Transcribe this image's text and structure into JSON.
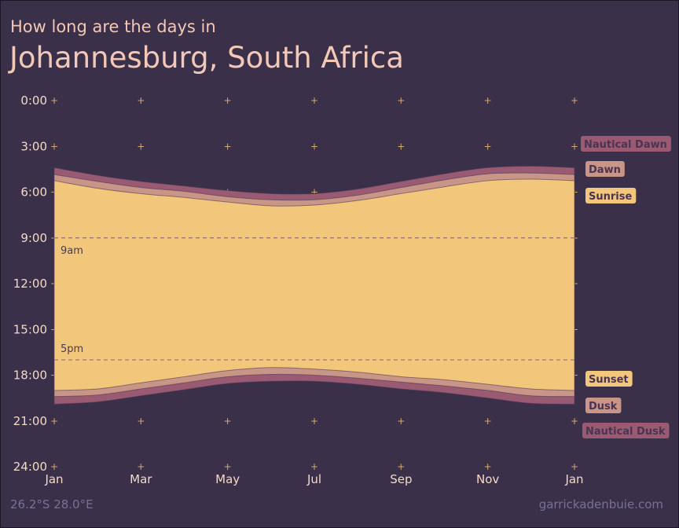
{
  "header": {
    "subtitle": "How long are the days in",
    "title": "Johannesburg, South Africa"
  },
  "footer": {
    "coords": "26.2°S 28.0°E",
    "credit": "garrickadenbuie.com"
  },
  "chart_data": {
    "type": "area",
    "y_axis": {
      "ticks": [
        "0:00",
        "3:00",
        "6:00",
        "9:00",
        "12:00",
        "15:00",
        "18:00",
        "21:00",
        "24:00"
      ],
      "range_hours": [
        0,
        24
      ],
      "reversed": true
    },
    "x_axis": {
      "tick_labels": [
        "Jan",
        "Mar",
        "May",
        "Jul",
        "Sep",
        "Nov",
        "Jan"
      ],
      "tick_months": [
        0,
        2,
        4,
        6,
        8,
        10,
        12
      ]
    },
    "reference_lines": [
      {
        "label": "9am",
        "hour": 9
      },
      {
        "label": "5pm",
        "hour": 17
      }
    ],
    "months": [
      0,
      1,
      2,
      3,
      4,
      5,
      6,
      7,
      8,
      9,
      10,
      11,
      12
    ],
    "series": [
      {
        "name": "Nautical Dawn",
        "color": "#9a5a72",
        "values": [
          4.4,
          4.9,
          5.3,
          5.6,
          5.9,
          6.1,
          6.1,
          5.8,
          5.3,
          4.8,
          4.4,
          4.3,
          4.4
        ]
      },
      {
        "name": "Dawn",
        "color": "#c99586",
        "values": [
          4.85,
          5.3,
          5.7,
          5.95,
          6.3,
          6.5,
          6.5,
          6.2,
          5.7,
          5.2,
          4.8,
          4.75,
          4.85
        ]
      },
      {
        "name": "Sunrise",
        "color": "#f2c77c",
        "values": [
          5.25,
          5.75,
          6.1,
          6.35,
          6.65,
          6.9,
          6.85,
          6.55,
          6.1,
          5.65,
          5.25,
          5.15,
          5.25
        ]
      },
      {
        "name": "Sunset",
        "color": "#f2c77c",
        "values": [
          19.0,
          18.9,
          18.5,
          18.1,
          17.7,
          17.5,
          17.6,
          17.8,
          18.1,
          18.3,
          18.6,
          18.9,
          19.0
        ]
      },
      {
        "name": "Dusk",
        "color": "#c99586",
        "values": [
          19.4,
          19.3,
          18.9,
          18.5,
          18.1,
          17.95,
          18.0,
          18.2,
          18.45,
          18.7,
          19.0,
          19.35,
          19.4
        ]
      },
      {
        "name": "Nautical Dusk",
        "color": "#9a5a72",
        "values": [
          19.9,
          19.75,
          19.35,
          18.95,
          18.55,
          18.4,
          18.4,
          18.6,
          18.9,
          19.15,
          19.5,
          19.85,
          19.9
        ]
      }
    ],
    "legend_placement": "right",
    "grid": true
  }
}
